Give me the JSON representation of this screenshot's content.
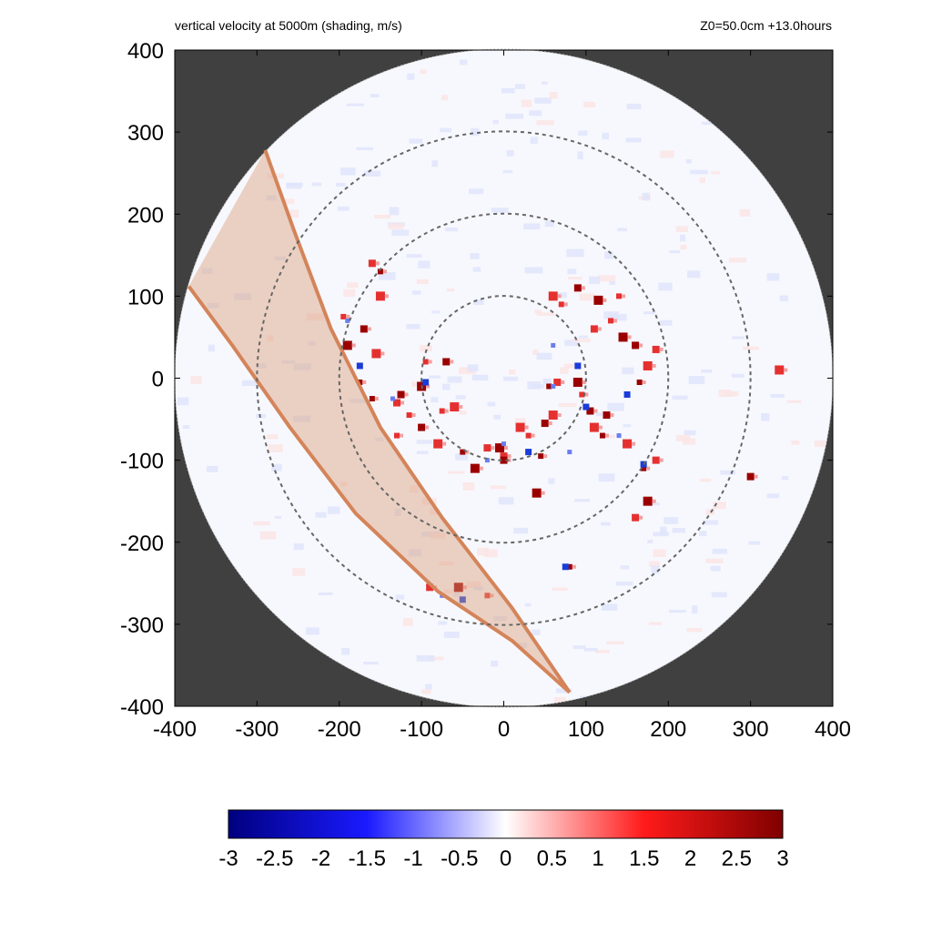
{
  "chart_data": {
    "type": "heatmap",
    "title": "vertical velocity at 5000m (shading, m/s)",
    "subtitle": "Z0=50.0cm  +13.0hours",
    "x_ticks": [
      "-400",
      "-300",
      "-200",
      "-100",
      "0",
      "100",
      "200",
      "300",
      "400"
    ],
    "y_ticks": [
      "400",
      "300",
      "200",
      "100",
      "0",
      "-100",
      "-200",
      "-300",
      "-400"
    ],
    "xlim": [
      -400,
      400
    ],
    "ylim": [
      -400,
      400
    ],
    "domain_radius": 400,
    "range_rings": [
      100,
      200,
      300
    ],
    "colorbar": {
      "min": -3,
      "max": 3,
      "ticks": [
        "-3",
        "-2.5",
        "-2",
        "-1.5",
        "-1",
        "-0.5",
        "0",
        "0.5",
        "1",
        "1.5",
        "2",
        "2.5",
        "3"
      ]
    },
    "swath": {
      "left_edge": [
        [
          -383,
          112
        ],
        [
          -330,
          40
        ],
        [
          -260,
          -60
        ],
        [
          -180,
          -165
        ],
        [
          -80,
          -260
        ],
        [
          10,
          -320
        ],
        [
          80,
          -383
        ]
      ],
      "right_edge": [
        [
          -290,
          278
        ],
        [
          -255,
          180
        ],
        [
          -210,
          60
        ],
        [
          -150,
          -60
        ],
        [
          -75,
          -170
        ],
        [
          10,
          -280
        ],
        [
          80,
          -383
        ]
      ]
    },
    "updrafts": [
      [
        -195,
        75
      ],
      [
        -170,
        60
      ],
      [
        -150,
        100
      ],
      [
        -175,
        -5
      ],
      [
        -130,
        -30
      ],
      [
        -100,
        -10
      ],
      [
        -95,
        20
      ],
      [
        -70,
        20
      ],
      [
        -60,
        -35
      ],
      [
        -50,
        -90
      ],
      [
        -20,
        -85
      ],
      [
        -5,
        -85
      ],
      [
        30,
        -70
      ],
      [
        50,
        -55
      ],
      [
        60,
        -45
      ],
      [
        55,
        -10
      ],
      [
        65,
        -5
      ],
      [
        90,
        -5
      ],
      [
        95,
        -20
      ],
      [
        105,
        -40
      ],
      [
        110,
        -60
      ],
      [
        120,
        -70
      ],
      [
        110,
        60
      ],
      [
        115,
        95
      ],
      [
        140,
        100
      ],
      [
        160,
        40
      ],
      [
        175,
        15
      ],
      [
        165,
        -5
      ],
      [
        185,
        35
      ],
      [
        145,
        50
      ],
      [
        130,
        70
      ],
      [
        125,
        -45
      ],
      [
        150,
        -80
      ],
      [
        170,
        -110
      ],
      [
        185,
        -100
      ],
      [
        175,
        -150
      ],
      [
        70,
        90
      ],
      [
        90,
        110
      ],
      [
        60,
        100
      ],
      [
        45,
        -95
      ],
      [
        0,
        -95
      ],
      [
        -35,
        -110
      ],
      [
        -115,
        -45
      ],
      [
        -125,
        -20
      ],
      [
        -155,
        30
      ],
      [
        -160,
        -25
      ],
      [
        -90,
        -255
      ],
      [
        -55,
        -255
      ],
      [
        -20,
        -265
      ],
      [
        300,
        -120
      ],
      [
        335,
        10
      ],
      [
        80,
        -230
      ],
      [
        160,
        -170
      ],
      [
        40,
        -140
      ],
      [
        -130,
        -70
      ],
      [
        -100,
        -60
      ],
      [
        -80,
        -80
      ],
      [
        -150,
        130
      ],
      [
        -160,
        140
      ],
      [
        -190,
        40
      ],
      [
        -75,
        -40
      ],
      [
        0,
        -100
      ],
      [
        20,
        -60
      ]
    ],
    "downdrafts": [
      [
        -190,
        70
      ],
      [
        -175,
        15
      ],
      [
        -135,
        -25
      ],
      [
        -95,
        -5
      ],
      [
        60,
        -10
      ],
      [
        100,
        -35
      ],
      [
        140,
        -70
      ],
      [
        150,
        -20
      ],
      [
        80,
        -90
      ],
      [
        30,
        -90
      ],
      [
        -20,
        -100
      ],
      [
        170,
        -105
      ],
      [
        60,
        40
      ],
      [
        75,
        -230
      ],
      [
        -75,
        -265
      ],
      [
        -50,
        -270
      ],
      [
        0,
        -80
      ],
      [
        90,
        15
      ]
    ]
  }
}
